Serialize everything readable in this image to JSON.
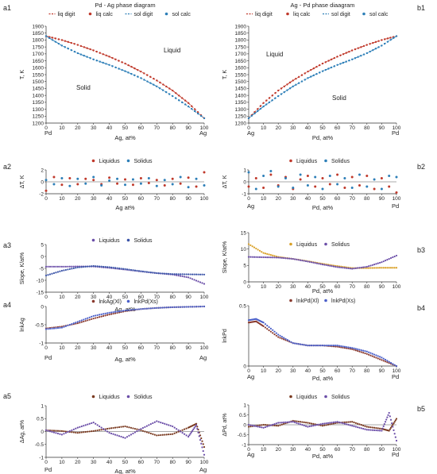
{
  "chart_data": [
    {
      "id": "a1",
      "type": "scatter",
      "panel_label": "a1",
      "title": "Pd - Ag phase diagram",
      "legend": [
        "liq digit",
        "liq calc",
        "sol digit",
        "sol calc"
      ],
      "ylabel": "T, K",
      "xlabel": "Ag, at%",
      "x_end_labels": [
        "Pd",
        "Ag"
      ],
      "xlim": [
        0,
        100
      ],
      "ylim": [
        1200,
        1900
      ],
      "yticks": [
        "1200",
        "1250",
        "1300",
        "1350",
        "1400",
        "1450",
        "1500",
        "1550",
        "1600",
        "1650",
        "1700",
        "1750",
        "1800",
        "1850",
        "1900"
      ],
      "xticks": [
        "0",
        "10",
        "20",
        "30",
        "40",
        "50",
        "60",
        "70",
        "80",
        "90",
        "100"
      ],
      "region_labels": [
        "Liquid",
        "Solid"
      ],
      "series": [
        {
          "name": "liq calc",
          "x": [
            0,
            10,
            20,
            30,
            40,
            50,
            60,
            70,
            80,
            90,
            100
          ],
          "y": [
            1828,
            1800,
            1765,
            1725,
            1680,
            1630,
            1572,
            1508,
            1435,
            1345,
            1235
          ]
        },
        {
          "name": "sol calc",
          "x": [
            0,
            10,
            20,
            30,
            40,
            50,
            60,
            70,
            80,
            90,
            100
          ],
          "y": [
            1828,
            1760,
            1705,
            1660,
            1620,
            1575,
            1525,
            1465,
            1395,
            1320,
            1235
          ]
        }
      ]
    },
    {
      "id": "b1",
      "type": "scatter",
      "panel_label": "b1",
      "title": "Ag - Pd phase diaagram",
      "legend": [
        "liq digit",
        "liq calc",
        "sol digit",
        "sol calc"
      ],
      "ylabel": "T, K",
      "xlabel": "Pd, at%",
      "x_end_labels": [
        "Ag",
        "Pd"
      ],
      "xlim": [
        0,
        100
      ],
      "ylim": [
        1200,
        1900
      ],
      "yticks": [
        "1200",
        "1250",
        "1300",
        "1350",
        "1400",
        "1450",
        "1500",
        "1550",
        "1600",
        "1650",
        "1700",
        "1750",
        "1800",
        "1850",
        "1900"
      ],
      "xticks": [
        "0",
        "10",
        "20",
        "30",
        "40",
        "50",
        "60",
        "70",
        "80",
        "90",
        "100"
      ],
      "region_labels": [
        "Liquid",
        "Solid"
      ],
      "series": [
        {
          "name": "liq calc",
          "x": [
            0,
            10,
            20,
            30,
            40,
            50,
            60,
            70,
            80,
            90,
            100
          ],
          "y": [
            1235,
            1345,
            1435,
            1508,
            1572,
            1630,
            1680,
            1725,
            1765,
            1800,
            1828
          ]
        },
        {
          "name": "sol calc",
          "x": [
            0,
            10,
            20,
            30,
            40,
            50,
            60,
            70,
            80,
            90,
            100
          ],
          "y": [
            1235,
            1320,
            1395,
            1465,
            1525,
            1575,
            1620,
            1660,
            1705,
            1760,
            1828
          ]
        }
      ]
    },
    {
      "id": "a2",
      "type": "scatter",
      "panel_label": "a2",
      "legend": [
        "Liquidus",
        "Solidus"
      ],
      "ylabel": "ΔT, K",
      "xlabel": "Ag at%",
      "x_end_labels": [],
      "xlim": [
        0,
        100
      ],
      "ylim": [
        -2,
        2
      ],
      "yticks": [
        "-2",
        "0",
        "2"
      ],
      "xticks": [
        "0",
        "10",
        "20",
        "30",
        "40",
        "50",
        "60",
        "70",
        "80",
        "90",
        "100"
      ],
      "region_labels": [],
      "series": [
        {
          "name": "Liquidus",
          "x": [
            0,
            5,
            10,
            15,
            20,
            25,
            30,
            35,
            40,
            45,
            50,
            55,
            60,
            65,
            70,
            75,
            80,
            85,
            90,
            95,
            100
          ],
          "y": [
            -1.5,
            0.8,
            -0.5,
            0.6,
            -0.4,
            0.5,
            0.3,
            -0.4,
            0.7,
            -0.3,
            0.4,
            -0.5,
            0.6,
            -0.2,
            0.3,
            -0.6,
            0.5,
            -0.3,
            0.7,
            -0.8,
            1.6
          ]
        },
        {
          "name": "Solidus",
          "x": [
            0,
            5,
            10,
            15,
            20,
            25,
            30,
            35,
            40,
            45,
            50,
            55,
            60,
            65,
            70,
            75,
            80,
            85,
            90,
            95,
            100
          ],
          "y": [
            0.3,
            -0.4,
            0.6,
            -0.7,
            0.5,
            -0.3,
            0.8,
            -0.6,
            0.2,
            0.5,
            -0.5,
            0.4,
            -0.3,
            0.6,
            -0.7,
            0.3,
            -0.4,
            0.8,
            -0.9,
            0.5,
            -0.6
          ]
        }
      ]
    },
    {
      "id": "b2",
      "type": "scatter",
      "panel_label": "b2",
      "legend": [
        "Liquidus",
        "Solidus"
      ],
      "ylabel": "ΔT, K",
      "xlabel": "Pd, at%",
      "x_end_labels": [
        "Ag",
        "Pd"
      ],
      "xlim": [
        0,
        100
      ],
      "ylim": [
        -1,
        1
      ],
      "yticks": [
        "-1",
        "0",
        "1"
      ],
      "xticks": [
        "0",
        "10",
        "20",
        "30",
        "40",
        "50",
        "60",
        "70",
        "80",
        "90",
        "100"
      ],
      "region_labels": [],
      "series": [
        {
          "name": "Liquidus",
          "x": [
            0,
            5,
            10,
            15,
            20,
            25,
            30,
            35,
            40,
            45,
            50,
            55,
            60,
            65,
            70,
            75,
            80,
            85,
            90,
            95,
            100
          ],
          "y": [
            -0.4,
            0.3,
            -0.5,
            0.6,
            -0.3,
            0.4,
            -0.6,
            0.2,
            0.5,
            -0.4,
            0.3,
            -0.2,
            0.6,
            -0.5,
            0.4,
            -0.3,
            0.5,
            -0.6,
            0.3,
            -0.4,
            -0.9
          ]
        },
        {
          "name": "Solidus",
          "x": [
            0,
            5,
            10,
            15,
            20,
            25,
            30,
            35,
            40,
            45,
            50,
            55,
            60,
            65,
            70,
            75,
            80,
            85,
            90,
            95,
            100
          ],
          "y": [
            0.8,
            -0.6,
            0.5,
            0.9,
            -0.4,
            0.3,
            -0.5,
            0.6,
            -0.3,
            0.4,
            -0.6,
            0.5,
            -0.2,
            0.3,
            -0.5,
            0.6,
            -0.4,
            0.2,
            -0.6,
            0.5,
            0.4
          ]
        }
      ]
    },
    {
      "id": "a3",
      "type": "line",
      "panel_label": "a3",
      "legend": [
        "Liquidus",
        "Solidus"
      ],
      "ylabel": "Slope, K/at%",
      "xlabel": "Ag, at%",
      "x_end_labels": [],
      "xlim": [
        0,
        100
      ],
      "ylim": [
        -15,
        5
      ],
      "yticks": [
        "-15",
        "-10",
        "-5",
        "0",
        "5"
      ],
      "xticks": [
        "0",
        "10",
        "20",
        "30",
        "40",
        "50",
        "60",
        "70",
        "80",
        "90",
        "100"
      ],
      "region_labels": [],
      "series": [
        {
          "name": "Liquidus",
          "x": [
            0,
            10,
            20,
            30,
            40,
            50,
            60,
            70,
            80,
            90,
            100
          ],
          "y": [
            -4.3,
            -4.3,
            -4.2,
            -4.2,
            -4.8,
            -5.5,
            -6.3,
            -7.0,
            -7.6,
            -8.8,
            -11.5
          ]
        },
        {
          "name": "Solidus",
          "x": [
            0,
            10,
            20,
            30,
            40,
            50,
            60,
            70,
            80,
            90,
            100
          ],
          "y": [
            -8.0,
            -6.0,
            -4.6,
            -4.0,
            -4.5,
            -5.3,
            -6.2,
            -7.0,
            -7.4,
            -7.5,
            -7.6
          ]
        }
      ]
    },
    {
      "id": "b3",
      "type": "line",
      "panel_label": "b3",
      "legend": [
        "Liquidus",
        "Solidus"
      ],
      "ylabel": "Slope, K/at%",
      "xlabel": "Pd, at%",
      "x_end_labels": [],
      "xlim": [
        0,
        100
      ],
      "ylim": [
        0,
        15
      ],
      "yticks": [
        "0",
        "5",
        "10",
        "15"
      ],
      "xticks": [
        "0",
        "10",
        "20",
        "30",
        "40",
        "50",
        "60",
        "70",
        "80",
        "90",
        "100"
      ],
      "region_labels": [],
      "series": [
        {
          "name": "Liquidus",
          "x": [
            0,
            10,
            20,
            30,
            40,
            50,
            60,
            70,
            80,
            90,
            100
          ],
          "y": [
            11.5,
            8.8,
            7.6,
            7.0,
            6.3,
            5.5,
            4.8,
            4.2,
            4.2,
            4.3,
            4.3
          ]
        },
        {
          "name": "Solidus",
          "x": [
            0,
            10,
            20,
            30,
            40,
            50,
            60,
            70,
            80,
            90,
            100
          ],
          "y": [
            7.6,
            7.5,
            7.4,
            7.0,
            6.2,
            5.3,
            4.5,
            4.0,
            4.6,
            6.0,
            8.0
          ]
        }
      ]
    },
    {
      "id": "a4",
      "type": "line",
      "panel_label": "a4",
      "legend": [
        "lnkAg(Xl)",
        "lnkPd(Xs)"
      ],
      "ylabel": "lnkAg",
      "xlabel": "Ag, at%",
      "x_end_labels": [
        "Pd",
        "Ag"
      ],
      "xlim": [
        0,
        100
      ],
      "ylim": [
        -1,
        0
      ],
      "yticks": [
        "-1",
        "-0.5",
        "0"
      ],
      "xticks": [
        "0",
        "10",
        "20",
        "30",
        "40",
        "50",
        "60",
        "70",
        "80",
        "90",
        "100"
      ],
      "region_labels": [],
      "series": [
        {
          "name": "lnkAg(Xl)",
          "x": [
            0,
            10,
            20,
            30,
            40,
            50,
            60,
            70,
            80,
            90,
            100
          ],
          "y": [
            -0.6,
            -0.55,
            -0.46,
            -0.33,
            -0.22,
            -0.13,
            -0.07,
            -0.04,
            -0.02,
            -0.01,
            0
          ]
        },
        {
          "name": "lnkPd(Xs)",
          "x": [
            0,
            10,
            20,
            30,
            40,
            50,
            60,
            70,
            80,
            90,
            100
          ],
          "y": [
            -0.62,
            -0.58,
            -0.42,
            -0.26,
            -0.17,
            -0.11,
            -0.07,
            -0.04,
            -0.02,
            -0.01,
            0
          ]
        }
      ]
    },
    {
      "id": "b4",
      "type": "line",
      "panel_label": "b4",
      "legend": [
        "lnkPd(Xl)",
        "lnkPd(Xs)"
      ],
      "ylabel": "lnkPd",
      "xlabel": "Pd, at%",
      "x_end_labels": [
        "Ag",
        "Pd"
      ],
      "xlim": [
        0,
        100
      ],
      "ylim": [
        0,
        0.5
      ],
      "yticks": [
        "0",
        "0.5"
      ],
      "xticks": [
        "0",
        "10",
        "20",
        "30",
        "40",
        "50",
        "60",
        "70",
        "80",
        "90",
        "100"
      ],
      "region_labels": [],
      "series": [
        {
          "name": "lnkPd(Xl)",
          "x": [
            0,
            5,
            10,
            20,
            30,
            40,
            50,
            60,
            70,
            80,
            90,
            100
          ],
          "y": [
            0.36,
            0.37,
            0.33,
            0.24,
            0.19,
            0.17,
            0.17,
            0.16,
            0.14,
            0.1,
            0.05,
            0
          ]
        },
        {
          "name": "lnkPd(Xs)",
          "x": [
            0,
            5,
            10,
            20,
            30,
            40,
            50,
            60,
            70,
            80,
            90,
            100
          ],
          "y": [
            0.38,
            0.39,
            0.36,
            0.26,
            0.19,
            0.17,
            0.17,
            0.17,
            0.15,
            0.12,
            0.07,
            0
          ]
        }
      ]
    },
    {
      "id": "a5",
      "type": "line",
      "panel_label": "a5",
      "legend": [
        "Liquidus",
        "Solidus"
      ],
      "ylabel": "ΔAg, at%",
      "xlabel": "Ag,  at%",
      "x_end_labels": [
        "Pd",
        "Ag"
      ],
      "xlim": [
        0,
        100
      ],
      "ylim": [
        -1,
        1
      ],
      "yticks": [
        "-1",
        "-0.5",
        "0",
        "0.5",
        "1"
      ],
      "xticks": [
        "0",
        "10",
        "20",
        "30",
        "40",
        "50",
        "60",
        "70",
        "80",
        "90",
        "100"
      ],
      "region_labels": [],
      "series": [
        {
          "name": "Liquidus",
          "x": [
            0,
            10,
            20,
            30,
            40,
            50,
            60,
            70,
            80,
            90,
            95,
            100
          ],
          "y": [
            0.05,
            0.02,
            -0.05,
            0.02,
            0.12,
            0.2,
            0.05,
            -0.15,
            -0.1,
            0.15,
            0.3,
            -0.6
          ]
        },
        {
          "name": "Solidus",
          "x": [
            0,
            10,
            20,
            30,
            40,
            50,
            60,
            70,
            80,
            90,
            95,
            100
          ],
          "y": [
            0.05,
            -0.12,
            0.15,
            0.35,
            -0.05,
            -0.25,
            0.1,
            0.4,
            0.2,
            -0.2,
            0.25,
            -0.9
          ]
        }
      ]
    },
    {
      "id": "b5",
      "type": "line",
      "panel_label": "b5",
      "legend": [
        "Liquidus",
        "Solidus"
      ],
      "ylabel": "ΔPd, at%",
      "xlabel": "Pd,  at%",
      "x_end_labels": [
        "Ag",
        "Pd"
      ],
      "xlim": [
        0,
        100
      ],
      "ylim": [
        -1,
        1
      ],
      "yticks": [
        "-1",
        "-0.5",
        "0",
        "0.5",
        "1"
      ],
      "xticks": [
        "0",
        "10",
        "20",
        "30",
        "40",
        "50",
        "60",
        "70",
        "80",
        "90",
        "100"
      ],
      "region_labels": [],
      "series": [
        {
          "name": "Liquidus",
          "x": [
            0,
            10,
            20,
            30,
            40,
            50,
            60,
            70,
            80,
            90,
            95,
            100
          ],
          "y": [
            -0.1,
            0.0,
            -0.05,
            0.2,
            0.1,
            -0.05,
            0.1,
            0.15,
            -0.1,
            -0.2,
            -0.3,
            0.3
          ]
        },
        {
          "name": "Solidus",
          "x": [
            0,
            10,
            20,
            30,
            40,
            50,
            60,
            70,
            80,
            90,
            95,
            100
          ],
          "y": [
            0.0,
            -0.15,
            0.1,
            0.15,
            -0.1,
            0.05,
            0.15,
            -0.05,
            -0.25,
            -0.3,
            0.6,
            -0.8
          ]
        }
      ]
    }
  ],
  "colors": {
    "liquidus": "#c0392b",
    "solidus": "#2d7fb8",
    "a3_liquidus": "#6b4ea8",
    "a3_solidus": "#3b54a8",
    "b3_liquidus": "#d9a027",
    "b3_solidus": "#6b4ea8",
    "lnk_liq": "#8a3a2e",
    "lnk_sol": "#4a5fc9",
    "dev_liq": "#7a3a20",
    "dev_sol": "#6b4ea8",
    "axis": "#333333",
    "text": "#222222"
  }
}
